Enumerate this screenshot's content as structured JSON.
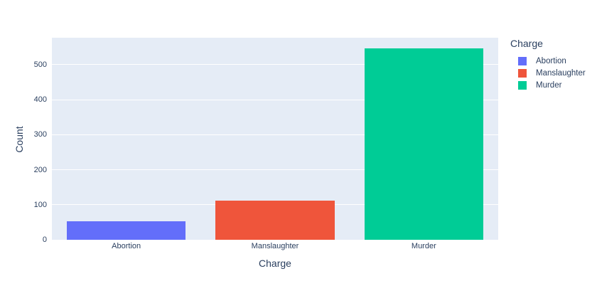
{
  "chart_data": {
    "type": "bar",
    "title": "",
    "categories": [
      "Abortion",
      "Manslaughter",
      "Murder"
    ],
    "values": [
      53,
      112,
      547
    ],
    "xlabel": "Charge",
    "ylabel": "Count",
    "ylim": [
      0,
      577
    ],
    "yticks": [
      0,
      100,
      200,
      300,
      400,
      500
    ],
    "grid": true,
    "legend": {
      "title": "Charge",
      "position": "right",
      "items": [
        {
          "label": "Abortion",
          "color": "#636EFA"
        },
        {
          "label": "Manslaughter",
          "color": "#EF553B"
        },
        {
          "label": "Murder",
          "color": "#00CC96"
        }
      ]
    },
    "colors": {
      "page_background": "#FFFFFF",
      "plot_background": "#E5ECF6",
      "grid": "#FFFFFF",
      "text": "#2A3F5F"
    }
  }
}
